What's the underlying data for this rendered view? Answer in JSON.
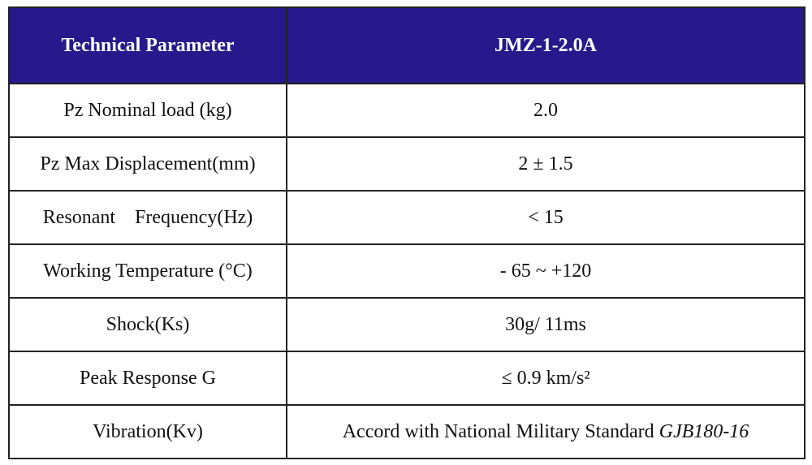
{
  "table": {
    "header": [
      "Technical Parameter",
      "JMZ-1-2.0A"
    ],
    "rows": [
      [
        "Pz Nominal load (kg)",
        "2.0"
      ],
      [
        "Pz Max Displacement(mm)",
        "2 ± 1.5"
      ],
      [
        "Resonant    Frequency(Hz)",
        "< 15"
      ],
      [
        "Working Temperature (°C)",
        "- 65 ~ +120"
      ],
      [
        "Shock(Ks)",
        "30g/ 11ms"
      ],
      [
        "Peak Response G",
        "≤ 0.9 km/s²"
      ],
      [
        "Vibration(Kv)",
        {
          "text": "Accord with National Military Standard",
          "standard": "GJB180-16"
        }
      ]
    ]
  }
}
